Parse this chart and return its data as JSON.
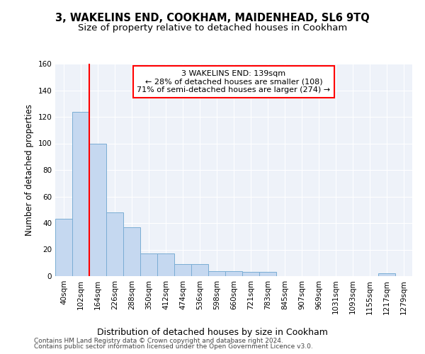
{
  "title1": "3, WAKELINS END, COOKHAM, MAIDENHEAD, SL6 9TQ",
  "title2": "Size of property relative to detached houses in Cookham",
  "xlabel": "Distribution of detached houses by size in Cookham",
  "ylabel": "Number of detached properties",
  "bar_labels": [
    "40sqm",
    "102sqm",
    "164sqm",
    "226sqm",
    "288sqm",
    "350sqm",
    "412sqm",
    "474sqm",
    "536sqm",
    "598sqm",
    "660sqm",
    "721sqm",
    "783sqm",
    "845sqm",
    "907sqm",
    "969sqm",
    "1031sqm",
    "1093sqm",
    "1155sqm",
    "1217sqm",
    "1279sqm"
  ],
  "bar_values": [
    43,
    124,
    100,
    48,
    37,
    17,
    17,
    9,
    9,
    4,
    4,
    3,
    3,
    0,
    0,
    0,
    0,
    0,
    0,
    2,
    0
  ],
  "bar_color": "#c5d8f0",
  "bar_edge_color": "#7aadd4",
  "property_line_color": "red",
  "annotation_text": "3 WAKELINS END: 139sqm\n← 28% of detached houses are smaller (108)\n71% of semi-detached houses are larger (274) →",
  "annotation_box_color": "white",
  "annotation_box_edge_color": "red",
  "ylim": [
    0,
    160
  ],
  "yticks": [
    0,
    20,
    40,
    60,
    80,
    100,
    120,
    140,
    160
  ],
  "footer1": "Contains HM Land Registry data © Crown copyright and database right 2024.",
  "footer2": "Contains public sector information licensed under the Open Government Licence v3.0.",
  "bg_color": "#eef2f9",
  "grid_color": "white",
  "title1_fontsize": 10.5,
  "title2_fontsize": 9.5,
  "ylabel_fontsize": 8.5,
  "xlabel_fontsize": 9,
  "tick_fontsize": 7.5,
  "annot_fontsize": 8,
  "footer_fontsize": 6.5
}
